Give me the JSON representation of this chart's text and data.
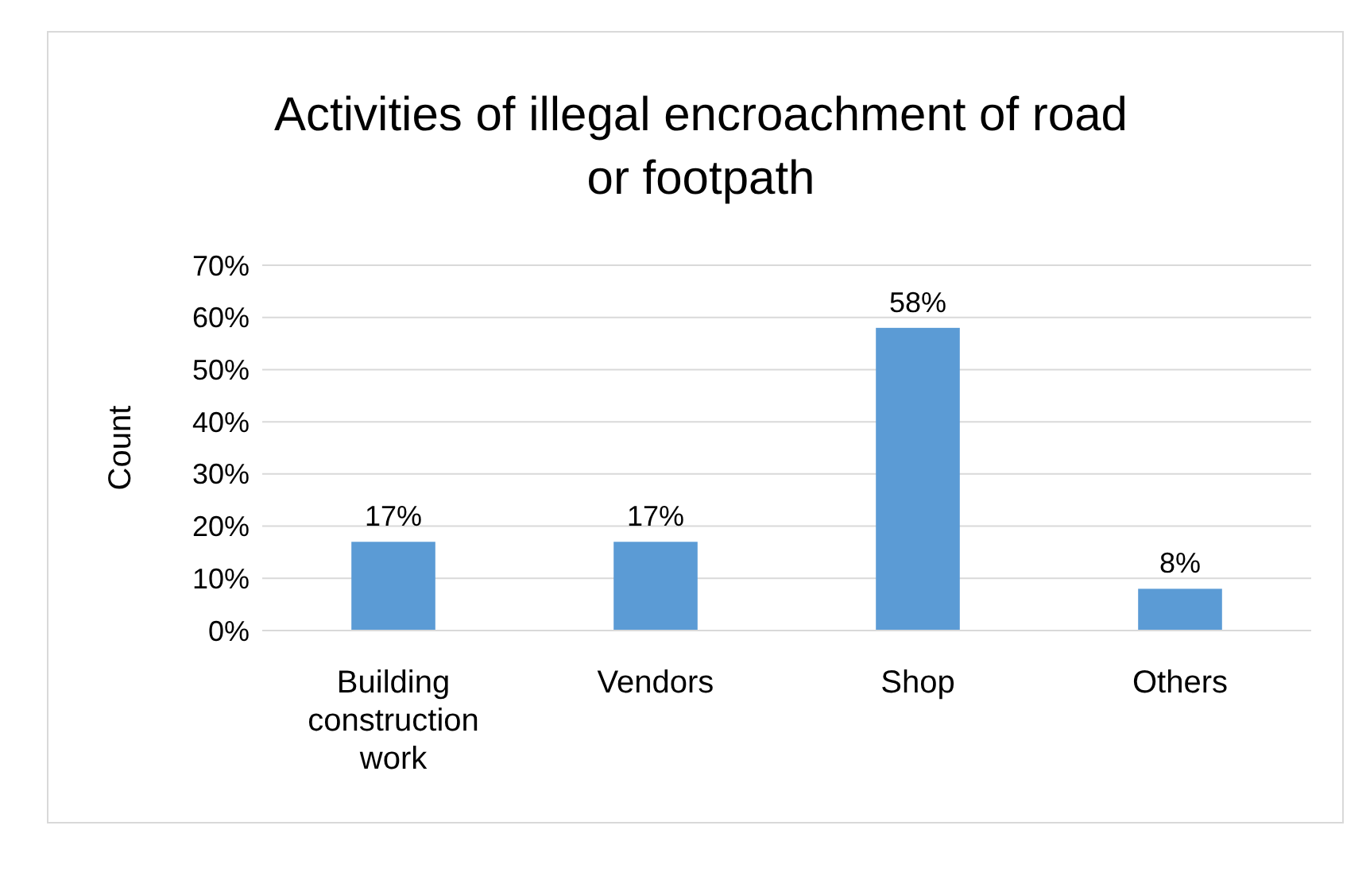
{
  "chart_data": {
    "type": "bar",
    "title": "Activities of illegal encroachment of road or footpath",
    "ylabel": "Count",
    "categories": [
      "Building construction work",
      "Vendors",
      "Shop",
      "Others"
    ],
    "values": [
      17,
      17,
      58,
      8
    ],
    "value_labels": [
      "17%",
      "17%",
      "58%",
      "8%"
    ],
    "color": "#5b9bd5",
    "ylim": [
      0,
      70
    ],
    "yticks": [
      {
        "value": 0,
        "label": "0%"
      },
      {
        "value": 10,
        "label": "10%"
      },
      {
        "value": 20,
        "label": "20%"
      },
      {
        "value": 30,
        "label": "30%"
      },
      {
        "value": 40,
        "label": "40%"
      },
      {
        "value": 50,
        "label": "50%"
      },
      {
        "value": 60,
        "label": "60%"
      },
      {
        "value": 70,
        "label": "70%"
      }
    ],
    "grid": "y"
  }
}
